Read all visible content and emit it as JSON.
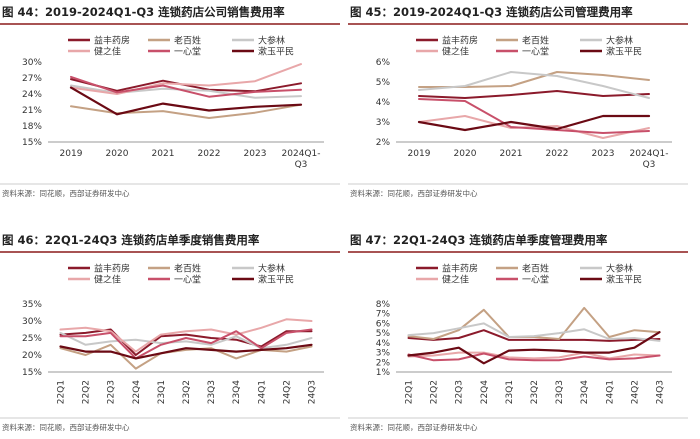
{
  "colors": {
    "title_bar": "#8B1A1A",
    "rule": "#8B1A1A",
    "axis": "#999999",
    "grid": "#d8d8d8"
  },
  "series_styles": [
    {
      "name": "益丰药房",
      "color": "#8B1A2B",
      "width": 2
    },
    {
      "name": "老百姓",
      "color": "#C4A184",
      "width": 2
    },
    {
      "name": "大参林",
      "color": "#C8C8C8",
      "width": 2
    },
    {
      "name": "健之佳",
      "color": "#E8A7A9",
      "width": 2
    },
    {
      "name": "一心堂",
      "color": "#C8506A",
      "width": 2
    },
    {
      "name": "漱玉平民",
      "color": "#6B0A14",
      "width": 2.2
    }
  ],
  "chart_data": [
    {
      "id": "fig44",
      "type": "line",
      "title": "图 44：2019-2024Q1-Q3 连锁药店公司销售费用率",
      "categories": [
        "2019",
        "2020",
        "2021",
        "2022",
        "2023",
        "2024Q1-\nQ3"
      ],
      "y_ticks": [
        "30%",
        "27%",
        "24%",
        "21%",
        "18%",
        "15%"
      ],
      "ylim": [
        15,
        30
      ],
      "series": [
        {
          "name": "益丰药房",
          "values": [
            26.8,
            24.6,
            26.5,
            24.8,
            24.5,
            26.0
          ]
        },
        {
          "name": "老百姓",
          "values": [
            21.7,
            20.4,
            20.8,
            19.5,
            20.5,
            22.0
          ]
        },
        {
          "name": "大参林",
          "values": [
            25.6,
            24.2,
            25.0,
            24.6,
            23.3,
            23.6
          ]
        },
        {
          "name": "健之佳",
          "values": [
            25.2,
            24.0,
            26.0,
            25.6,
            26.4,
            29.6
          ]
        },
        {
          "name": "一心堂",
          "values": [
            27.2,
            24.3,
            25.6,
            23.5,
            24.4,
            24.8
          ]
        },
        {
          "name": "漱玉平民",
          "values": [
            25.2,
            20.2,
            22.2,
            20.9,
            21.6,
            22.0
          ]
        }
      ],
      "source": "资料来源：同花顺，西部证券研发中心"
    },
    {
      "id": "fig45",
      "type": "line",
      "title": "图 45：2019-2024Q1-Q3 连锁药店公司管理费用率",
      "categories": [
        "2019",
        "2020",
        "2021",
        "2022",
        "2023",
        "2024Q1-\nQ3"
      ],
      "y_ticks": [
        "6%",
        "5%",
        "4%",
        "3%",
        "2%"
      ],
      "ylim": [
        2,
        6
      ],
      "series": [
        {
          "name": "益丰药房",
          "values": [
            4.3,
            4.2,
            4.35,
            4.55,
            4.3,
            4.4
          ]
        },
        {
          "name": "老百姓",
          "values": [
            4.75,
            4.75,
            4.8,
            5.5,
            5.35,
            5.1
          ]
        },
        {
          "name": "大参林",
          "values": [
            4.6,
            4.8,
            5.5,
            5.3,
            4.8,
            4.2
          ]
        },
        {
          "name": "健之佳",
          "values": [
            3.0,
            3.3,
            2.7,
            2.8,
            2.2,
            2.7
          ]
        },
        {
          "name": "一心堂",
          "values": [
            4.15,
            4.05,
            2.75,
            2.6,
            2.45,
            2.55
          ]
        },
        {
          "name": "漱玉平民",
          "values": [
            3.0,
            2.6,
            3.0,
            2.65,
            3.3,
            3.3
          ]
        }
      ],
      "source": "资料来源：同花顺，西部证券研发中心"
    },
    {
      "id": "fig46",
      "type": "line",
      "title": "图 46：22Q1-24Q3 连锁药店单季度销售费用率",
      "categories": [
        "22Q1",
        "22Q2",
        "22Q3",
        "22Q4",
        "23Q1",
        "23Q2",
        "23Q3",
        "23Q4",
        "24Q1",
        "24Q2",
        "24Q3"
      ],
      "y_ticks": [
        "35%",
        "30%",
        "25%",
        "20%",
        "15%"
      ],
      "ylim": [
        15,
        35
      ],
      "series": [
        {
          "name": "益丰药房",
          "values": [
            26.0,
            26.5,
            27.5,
            20.0,
            25.5,
            26.0,
            25.0,
            24.5,
            22.5,
            27.0,
            27.0
          ]
        },
        {
          "name": "老百姓",
          "values": [
            22.0,
            20.0,
            23.0,
            16.0,
            20.5,
            21.5,
            22.0,
            19.0,
            21.5,
            21.0,
            22.5
          ]
        },
        {
          "name": "大参林",
          "values": [
            26.5,
            23.0,
            24.0,
            24.5,
            23.5,
            24.0,
            23.0,
            25.5,
            22.0,
            23.0,
            25.0
          ]
        },
        {
          "name": "健之佳",
          "values": [
            27.5,
            28.0,
            27.0,
            21.0,
            26.0,
            27.0,
            27.5,
            26.0,
            28.0,
            30.5,
            30.0
          ]
        },
        {
          "name": "一心堂",
          "values": [
            25.5,
            25.5,
            26.5,
            19.0,
            23.0,
            25.0,
            23.5,
            27.0,
            22.0,
            26.5,
            27.5
          ]
        },
        {
          "name": "漱玉平民",
          "values": [
            22.5,
            21.0,
            21.0,
            19.0,
            20.5,
            22.0,
            21.5,
            21.0,
            21.5,
            22.0,
            23.0
          ]
        }
      ],
      "source": "资料来源：同花顺，西部证券研发中心"
    },
    {
      "id": "fig47",
      "type": "line",
      "title": "图 47：22Q1-24Q3 连锁药店单季度管理费用率",
      "categories": [
        "22Q1",
        "22Q2",
        "22Q3",
        "22Q4",
        "23Q1",
        "23Q2",
        "23Q3",
        "23Q4",
        "24Q1",
        "24Q2",
        "24Q3"
      ],
      "y_ticks": [
        "8%",
        "7%",
        "6%",
        "5%",
        "4%",
        "3%",
        "2%",
        "1%"
      ],
      "ylim": [
        1,
        8
      ],
      "series": [
        {
          "name": "益丰药房",
          "values": [
            4.5,
            4.3,
            4.5,
            5.3,
            4.3,
            4.3,
            4.3,
            4.3,
            4.2,
            4.3,
            4.4
          ]
        },
        {
          "name": "老百姓",
          "values": [
            4.7,
            4.4,
            5.3,
            7.4,
            4.6,
            4.6,
            4.4,
            7.6,
            4.6,
            5.3,
            5.1
          ]
        },
        {
          "name": "大参林",
          "values": [
            4.8,
            5.0,
            5.5,
            6.0,
            4.6,
            4.7,
            5.0,
            5.4,
            4.4,
            4.5,
            4.2
          ]
        },
        {
          "name": "健之佳",
          "values": [
            2.6,
            2.7,
            3.0,
            3.0,
            2.5,
            2.4,
            2.5,
            3.0,
            2.4,
            2.8,
            2.7
          ]
        },
        {
          "name": "一心堂",
          "values": [
            2.8,
            2.2,
            2.3,
            2.9,
            2.3,
            2.2,
            2.2,
            2.6,
            2.3,
            2.4,
            2.7
          ]
        },
        {
          "name": "漱玉平民",
          "values": [
            2.7,
            3.0,
            3.5,
            1.9,
            3.2,
            3.3,
            3.2,
            3.0,
            3.0,
            3.5,
            5.1
          ]
        }
      ],
      "source": "资料来源：同花顺，西部证券研发中心"
    }
  ]
}
